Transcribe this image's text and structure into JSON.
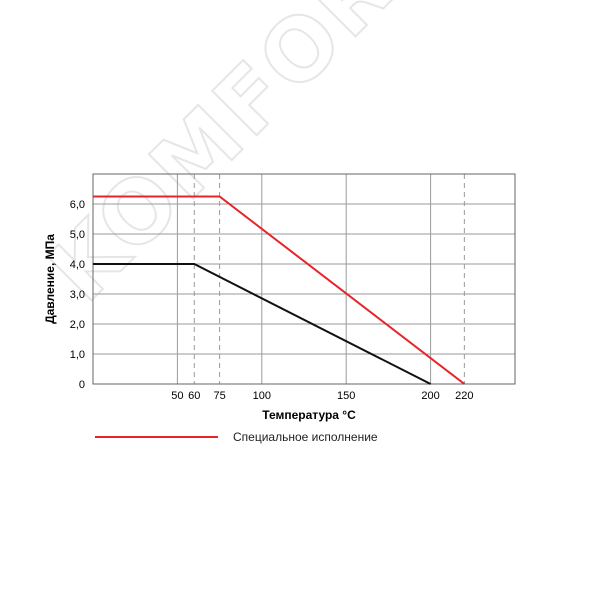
{
  "watermark": "KOMFORT.RU",
  "chart_data": {
    "type": "line",
    "xlabel": "Температура °С",
    "ylabel": "Давление, МПа",
    "xlim": [
      0,
      250
    ],
    "ylim": [
      0,
      7
    ],
    "x_ticks": [
      50,
      60,
      75,
      100,
      150,
      200,
      220
    ],
    "x_tick_labels": [
      "50",
      "60",
      "75",
      "100",
      "150",
      "200",
      "220"
    ],
    "y_ticks": [
      0,
      1,
      2,
      3,
      4,
      5,
      6
    ],
    "y_tick_labels": [
      "0",
      "1,0",
      "2,0",
      "3,0",
      "4,0",
      "5,0",
      "6,0"
    ],
    "grid": true,
    "legend_position": "bottom-left",
    "series": [
      {
        "name": "Специальное исполнение",
        "color": "#e8242b",
        "points": [
          [
            0,
            6.25
          ],
          [
            75,
            6.25
          ],
          [
            220,
            0
          ]
        ]
      },
      {
        "name": "",
        "color": "#111111",
        "points": [
          [
            0,
            4.0
          ],
          [
            60,
            4.0
          ],
          [
            200,
            0
          ]
        ]
      }
    ]
  }
}
